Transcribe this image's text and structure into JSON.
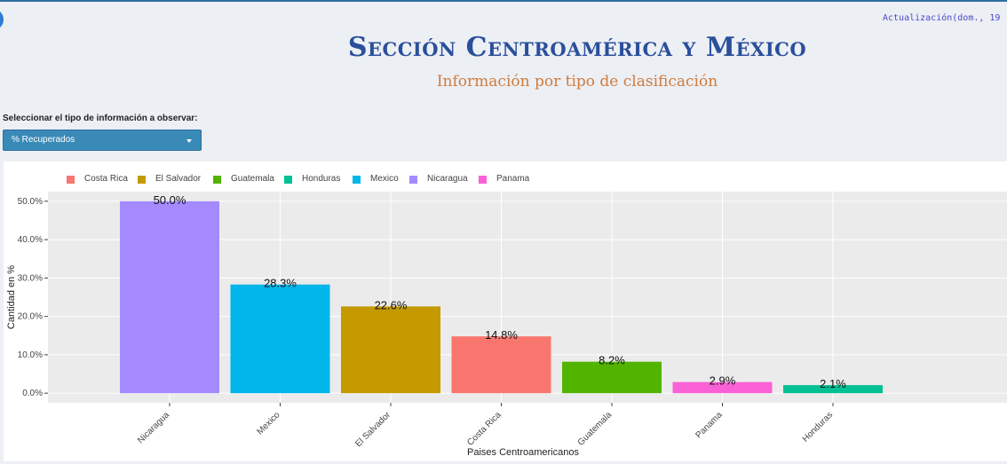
{
  "header": {
    "update_text": "Actualización(dom., 19",
    "title": "Sección Centroamérica y México",
    "subtitle": "Información por tipo de clasificación"
  },
  "controls": {
    "select_label": "Seleccionar el tipo de información a observar:",
    "selected_value": "% Recuperados"
  },
  "legend": {
    "items": [
      {
        "label": "Costa Rica",
        "color": "#f8766d"
      },
      {
        "label": "El Salvador",
        "color": "#c49a00"
      },
      {
        "label": "Guatemala",
        "color": "#53b400"
      },
      {
        "label": "Honduras",
        "color": "#00c094"
      },
      {
        "label": "Mexico",
        "color": "#00b6eb"
      },
      {
        "label": "Nicaragua",
        "color": "#a58aff"
      },
      {
        "label": "Panama",
        "color": "#fb61d7"
      }
    ]
  },
  "chart_data": {
    "type": "bar",
    "categories": [
      "Nicaragua",
      "Mexico",
      "El Salvador",
      "Costa Rica",
      "Guatemala",
      "Panama",
      "Honduras"
    ],
    "values": [
      50.0,
      28.3,
      22.6,
      14.8,
      8.2,
      2.9,
      2.1
    ],
    "data_labels": [
      "50.0%",
      "28.3%",
      "22.6%",
      "14.8%",
      "8.2%",
      "2.9%",
      "2.1%"
    ],
    "colors": [
      "#a58aff",
      "#00b6eb",
      "#c49a00",
      "#f8766d",
      "#53b400",
      "#fb61d7",
      "#00c094"
    ],
    "xlabel": "Paises Centroamericanos",
    "ylabel": "Cantidad en %",
    "yticks": [
      0,
      10,
      20,
      30,
      40,
      50
    ],
    "ytick_labels": [
      "0.0%",
      "10.0%",
      "20.0%",
      "30.0%",
      "40.0%",
      "50.0%"
    ],
    "ylim": [
      -2.5,
      52.5
    ],
    "grid": true,
    "legend_position": "top-left"
  }
}
